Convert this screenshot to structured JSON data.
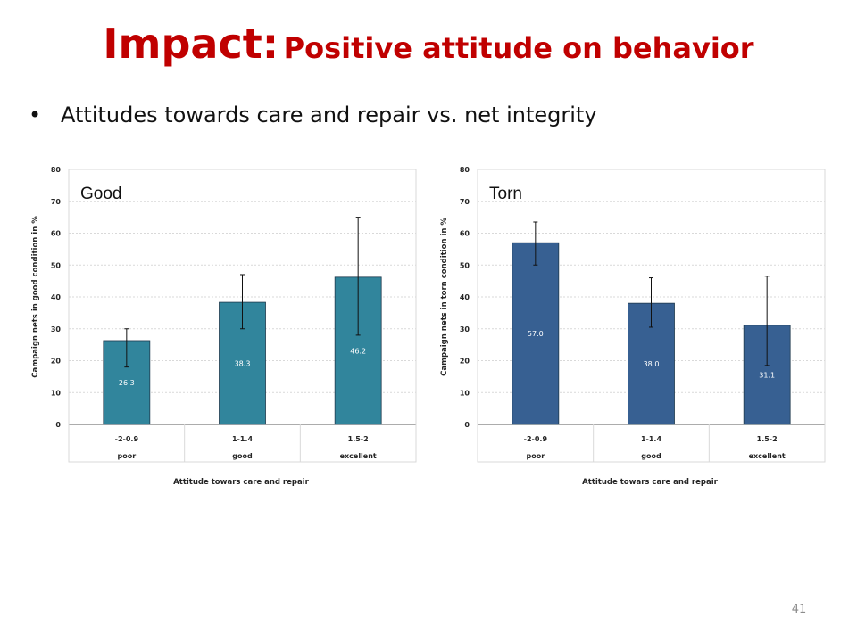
{
  "slide": {
    "title_main": "Impact:",
    "title_sub": "Positive attitude on behavior",
    "bullet": "Attitudes towards care and repair vs. net integrity",
    "page_number": "41"
  },
  "colors": {
    "title": "#c00000",
    "good_bar": "#31859c",
    "torn_bar": "#376092"
  },
  "chart_data": [
    {
      "type": "bar",
      "panel_label": "Good",
      "categories": [
        "-2-0.9",
        "1-1.4",
        "1.5-2"
      ],
      "category_labels": [
        "poor",
        "good",
        "excellent"
      ],
      "values": [
        26.3,
        38.3,
        46.2
      ],
      "value_labels": [
        "26.3",
        "38.3",
        "46.2"
      ],
      "error_low": [
        18,
        30,
        28
      ],
      "error_high": [
        30,
        47,
        65
      ],
      "ylabel": "Campaign nets in good condition in %",
      "xlabel": "Attitude towars care and repair",
      "ylim": [
        0,
        80
      ],
      "yticks": [
        0,
        10,
        20,
        30,
        40,
        50,
        60,
        70,
        80
      ],
      "grid": true,
      "color": "#31859c"
    },
    {
      "type": "bar",
      "panel_label": "Torn",
      "categories": [
        "-2-0.9",
        "1-1.4",
        "1.5-2"
      ],
      "category_labels": [
        "poor",
        "good",
        "excellent"
      ],
      "values": [
        57.0,
        38.0,
        31.1
      ],
      "value_labels": [
        "57.0",
        "38.0",
        "31.1"
      ],
      "error_low": [
        50,
        30.5,
        18.5
      ],
      "error_high": [
        63.5,
        46,
        46.5
      ],
      "ylabel": "Campaign nets in torn condition in %",
      "xlabel": "Attitude towars care and repair",
      "ylim": [
        0,
        80
      ],
      "yticks": [
        0,
        10,
        20,
        30,
        40,
        50,
        60,
        70,
        80
      ],
      "grid": true,
      "color": "#376092"
    }
  ]
}
